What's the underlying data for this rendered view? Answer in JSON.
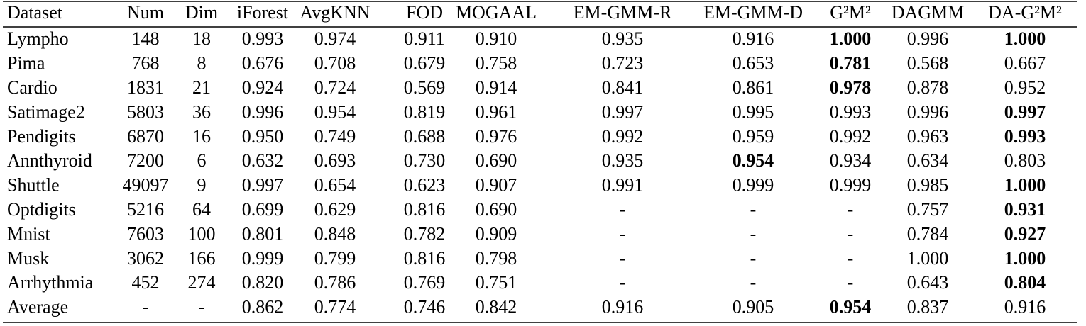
{
  "table": {
    "header": [
      "Dataset",
      "Num",
      "Dim",
      "iForest",
      "AvgKNN",
      "FOD",
      "MOGAAL",
      "EM-GMM-R",
      "EM-GMM-D",
      "G²M²",
      "DAGMM",
      "DA-G²M²"
    ],
    "rows": [
      [
        "Lympho",
        "148",
        "18",
        "0.993",
        "0.974",
        "0.911",
        "0.910",
        "0.935",
        "0.916",
        {
          "text": "1.000",
          "bold": true
        },
        "0.996",
        {
          "text": "1.000",
          "bold": true
        }
      ],
      [
        "Pima",
        "768",
        "8",
        "0.676",
        "0.708",
        "0.679",
        "0.758",
        "0.723",
        "0.653",
        {
          "text": "0.781",
          "bold": true
        },
        "0.568",
        "0.667"
      ],
      [
        "Cardio",
        "1831",
        "21",
        "0.924",
        "0.724",
        "0.569",
        "0.914",
        "0.841",
        "0.861",
        {
          "text": "0.978",
          "bold": true
        },
        "0.878",
        "0.952"
      ],
      [
        "Satimage2",
        "5803",
        "36",
        "0.996",
        "0.954",
        "0.819",
        "0.961",
        "0.997",
        "0.995",
        "0.993",
        "0.996",
        {
          "text": "0.997",
          "bold": true
        }
      ],
      [
        "Pendigits",
        "6870",
        "16",
        "0.950",
        "0.749",
        "0.688",
        "0.976",
        "0.992",
        "0.959",
        "0.992",
        "0.963",
        {
          "text": "0.993",
          "bold": true
        }
      ],
      [
        "Annthyroid",
        "7200",
        "6",
        "0.632",
        "0.693",
        "0.730",
        "0.690",
        "0.935",
        {
          "text": "0.954",
          "bold": true
        },
        "0.934",
        "0.634",
        "0.803"
      ],
      [
        "Shuttle",
        "49097",
        "9",
        "0.997",
        "0.654",
        "0.623",
        "0.907",
        "0.991",
        "0.999",
        "0.999",
        "0.985",
        {
          "text": "1.000",
          "bold": true
        }
      ],
      [
        "Optdigits",
        "5216",
        "64",
        "0.699",
        "0.629",
        "0.816",
        "0.690",
        "-",
        "-",
        "-",
        "0.757",
        {
          "text": "0.931",
          "bold": true
        }
      ],
      [
        "Mnist",
        "7603",
        "100",
        "0.801",
        "0.848",
        "0.782",
        "0.909",
        "-",
        "-",
        "-",
        "0.784",
        {
          "text": "0.927",
          "bold": true
        }
      ],
      [
        "Musk",
        "3062",
        "166",
        "0.999",
        "0.799",
        "0.816",
        "0.798",
        "-",
        "-",
        "-",
        "1.000",
        {
          "text": "1.000",
          "bold": true
        }
      ],
      [
        "Arrhythmia",
        "452",
        "274",
        "0.820",
        "0.786",
        "0.769",
        "0.751",
        "-",
        "-",
        "-",
        "0.643",
        {
          "text": "0.804",
          "bold": true
        }
      ],
      [
        "Average",
        "-",
        "-",
        "0.862",
        "0.774",
        "0.746",
        "0.842",
        "0.916",
        "0.905",
        {
          "text": "0.954",
          "bold": true
        },
        "0.837",
        "0.916"
      ]
    ]
  }
}
